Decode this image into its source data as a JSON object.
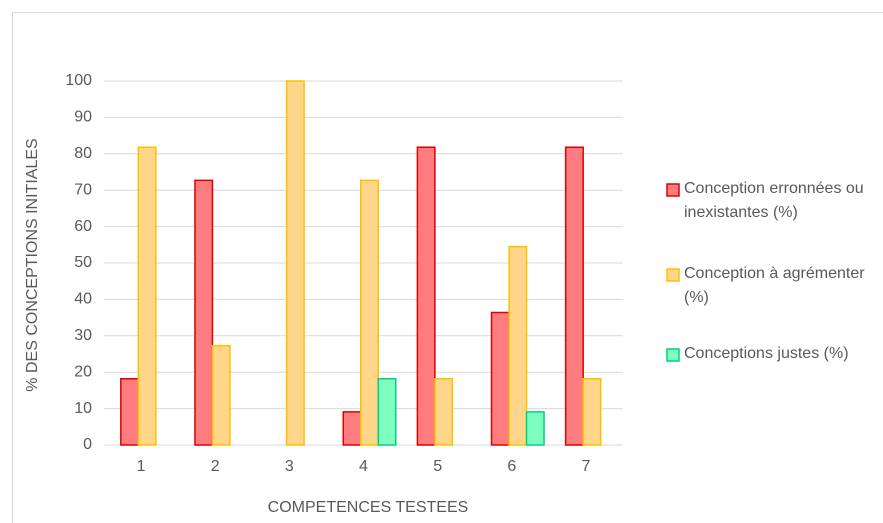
{
  "chart_data": {
    "type": "bar",
    "xlabel": "COMPETENCES TESTEES",
    "ylabel": "% DES CONCEPTIONS INITIALES",
    "categories": [
      "1",
      "2",
      "3",
      "4",
      "5",
      "6",
      "7"
    ],
    "series": [
      {
        "name": "Conception erronnées ou inexistantes  (%)",
        "color": "#ff7c80",
        "stroke": "#e00000",
        "values": [
          18.2,
          72.7,
          0,
          9.1,
          81.8,
          36.4,
          81.8
        ]
      },
      {
        "name": "Conception à agrémenter (%)",
        "color": "#ffd68a",
        "stroke": "#ffc000",
        "values": [
          81.8,
          27.3,
          100,
          72.7,
          18.2,
          54.5,
          18.2
        ]
      },
      {
        "name": "Conceptions justes (%)",
        "color": "#7fffbf",
        "stroke": "#00d080",
        "values": [
          0,
          0,
          0,
          18.2,
          0,
          9.1,
          0
        ]
      }
    ],
    "ylim": [
      0,
      100
    ],
    "yticks": [
      0,
      10,
      20,
      30,
      40,
      50,
      60,
      70,
      80,
      90,
      100
    ],
    "grid": true,
    "legend": "right"
  }
}
